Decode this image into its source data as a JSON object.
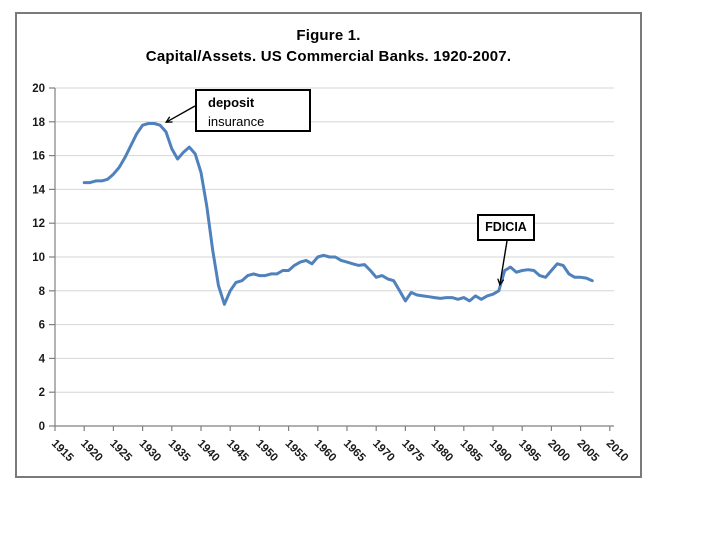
{
  "figure": {
    "title_line1": "Figure 1.",
    "title_line2": "Capital/Assets. US Commercial Banks. 1920-2007."
  },
  "annotations_text": {
    "deposit_line1": "deposit",
    "deposit_line2": "insurance",
    "fdicia_label": "FDICIA"
  },
  "chart_data": {
    "type": "line",
    "title": "Figure 1. Capital/Assets. US Commercial Banks. 1920-2007.",
    "xlabel": "",
    "ylabel": "",
    "xlim": [
      1915,
      2010
    ],
    "ylim": [
      0,
      20
    ],
    "x_ticks": [
      1915,
      1920,
      1925,
      1930,
      1935,
      1940,
      1945,
      1950,
      1955,
      1960,
      1965,
      1970,
      1975,
      1980,
      1985,
      1990,
      1995,
      2000,
      2005,
      2010
    ],
    "y_ticks": [
      0,
      2,
      4,
      6,
      8,
      10,
      12,
      14,
      16,
      18,
      20
    ],
    "grid": "horizontal",
    "legend": "none",
    "colors": {
      "line": "#4F81BD",
      "gridline": "#d6d6d6",
      "axis": "#808080",
      "tick_label": "#1a1a1a",
      "annotation_border": "#000000",
      "figure_border": "#7a7a7a"
    },
    "series": [
      {
        "name": "Capital/Assets ratio (%)",
        "x": [
          1920,
          1921,
          1922,
          1923,
          1924,
          1925,
          1926,
          1927,
          1928,
          1929,
          1930,
          1931,
          1932,
          1933,
          1934,
          1935,
          1936,
          1937,
          1938,
          1939,
          1940,
          1941,
          1942,
          1943,
          1944,
          1945,
          1946,
          1947,
          1948,
          1949,
          1950,
          1951,
          1952,
          1953,
          1954,
          1955,
          1956,
          1957,
          1958,
          1959,
          1960,
          1961,
          1962,
          1963,
          1964,
          1965,
          1966,
          1967,
          1968,
          1969,
          1970,
          1971,
          1972,
          1973,
          1974,
          1975,
          1976,
          1977,
          1978,
          1979,
          1980,
          1981,
          1982,
          1983,
          1984,
          1985,
          1986,
          1987,
          1988,
          1989,
          1990,
          1991,
          1992,
          1993,
          1994,
          1995,
          1996,
          1997,
          1998,
          1999,
          2000,
          2001,
          2002,
          2003,
          2004,
          2005,
          2006,
          2007
        ],
        "y": [
          14.4,
          14.4,
          14.5,
          14.5,
          14.6,
          14.9,
          15.3,
          15.9,
          16.6,
          17.3,
          17.8,
          17.9,
          17.9,
          17.8,
          17.4,
          16.4,
          15.8,
          16.2,
          16.5,
          16.1,
          15.0,
          13.0,
          10.4,
          8.3,
          7.2,
          8.0,
          8.5,
          8.6,
          8.9,
          9.0,
          8.9,
          8.9,
          9.0,
          9.0,
          9.2,
          9.2,
          9.5,
          9.7,
          9.8,
          9.6,
          10.0,
          10.1,
          10.0,
          10.0,
          9.8,
          9.7,
          9.6,
          9.5,
          9.55,
          9.2,
          8.8,
          8.9,
          8.7,
          8.6,
          8.0,
          7.4,
          7.9,
          7.75,
          7.7,
          7.65,
          7.6,
          7.55,
          7.6,
          7.6,
          7.5,
          7.6,
          7.4,
          7.7,
          7.5,
          7.7,
          7.8,
          8.0,
          9.2,
          9.4,
          9.1,
          9.2,
          9.25,
          9.2,
          8.9,
          8.8,
          9.2,
          9.6,
          9.5,
          9.0,
          8.8,
          8.8,
          8.75,
          8.6
        ]
      }
    ],
    "annotations": [
      {
        "text": "deposit insurance",
        "target_year": 1933.7,
        "target_value": 17.8
      },
      {
        "text": "FDICIA",
        "target_year": 1991,
        "target_value": 8.0
      }
    ]
  }
}
